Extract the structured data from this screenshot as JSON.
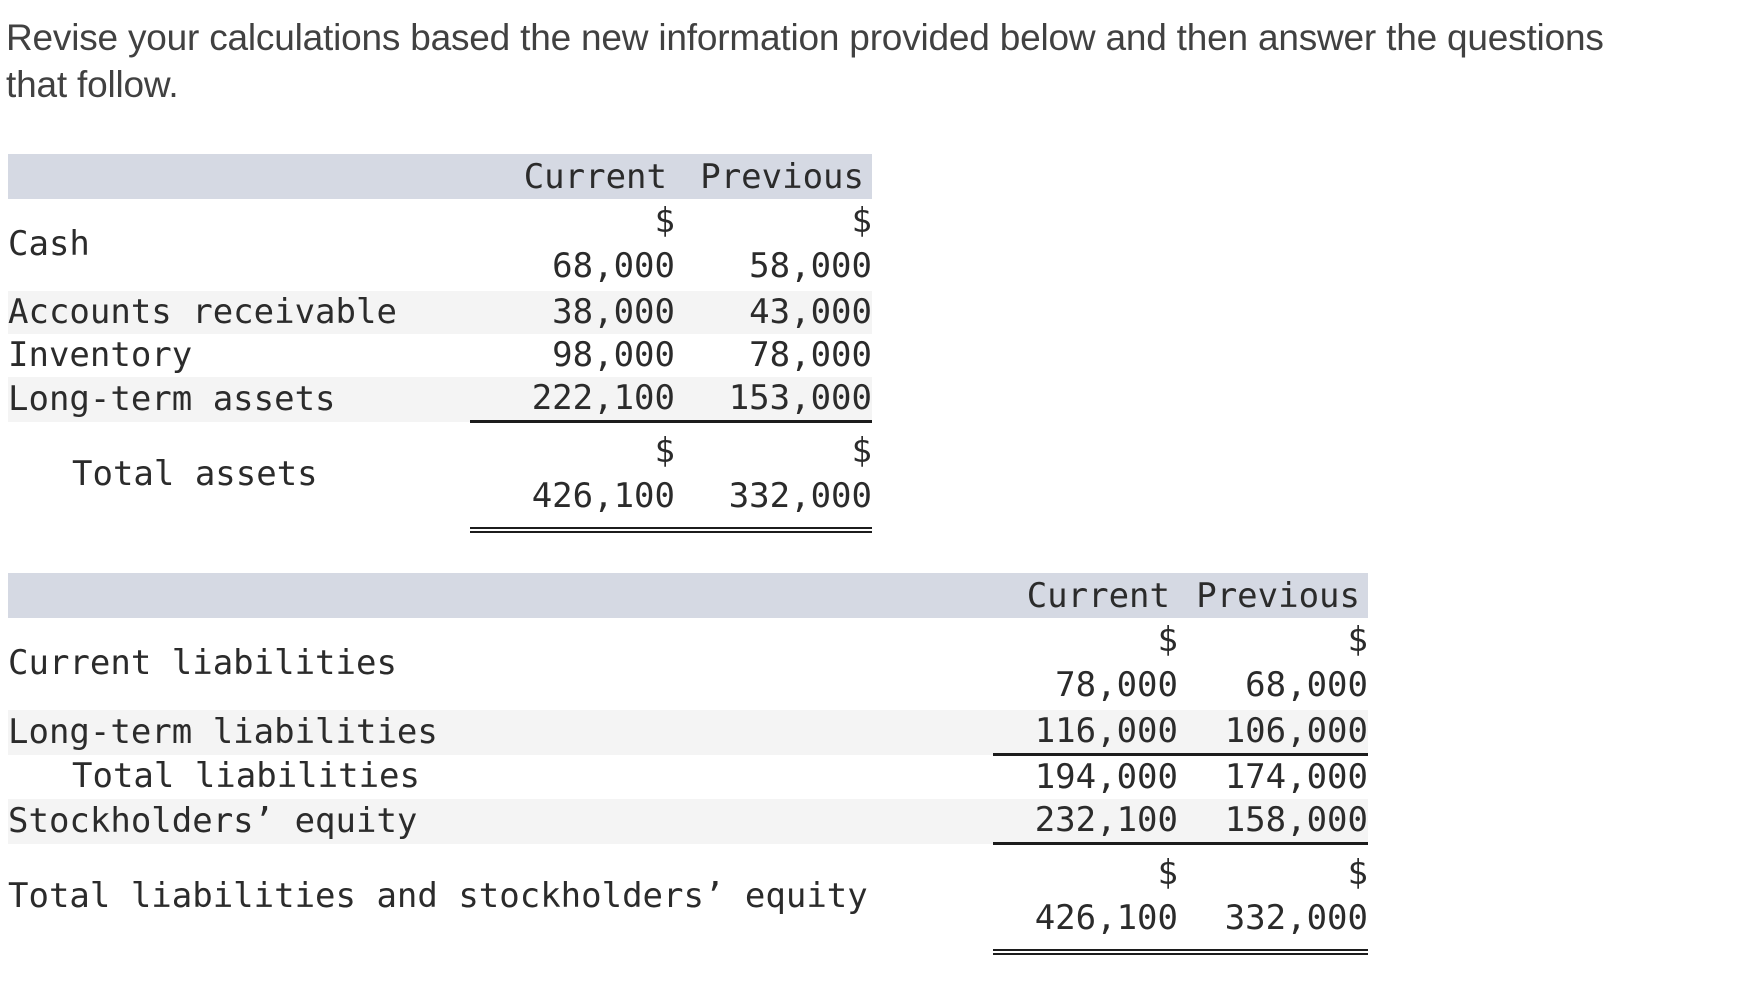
{
  "instruction": "Revise your calculations based the new information provided below and then answer the questions that follow.",
  "currency_symbol": "$",
  "assets_table": {
    "header": {
      "current": "Current",
      "previous": "Previous"
    },
    "rows": [
      {
        "label": "Cash",
        "current": "68,000",
        "previous": "58,000",
        "shows_dollar_sign": true
      },
      {
        "label": "Accounts receivable",
        "current": "38,000",
        "previous": "43,000",
        "shows_dollar_sign": false
      },
      {
        "label": "Inventory",
        "current": "98,000",
        "previous": "78,000",
        "shows_dollar_sign": false
      },
      {
        "label": "Long-term assets",
        "current": "222,100",
        "previous": "153,000",
        "shows_dollar_sign": false
      },
      {
        "label": "Total assets",
        "current": "426,100",
        "previous": "332,000",
        "shows_dollar_sign": true
      }
    ]
  },
  "liabilities_table": {
    "header": {
      "current": "Current",
      "previous": "Previous"
    },
    "rows": [
      {
        "label": "Current liabilities",
        "current": "78,000",
        "previous": "68,000",
        "shows_dollar_sign": true
      },
      {
        "label": "Long-term liabilities",
        "current": "116,000",
        "previous": "106,000",
        "shows_dollar_sign": false
      },
      {
        "label": "Total liabilities",
        "current": "194,000",
        "previous": "174,000",
        "shows_dollar_sign": false
      },
      {
        "label": "Stockholders’ equity",
        "current": "232,100",
        "previous": "158,000",
        "shows_dollar_sign": false
      },
      {
        "label": "Total liabilities and stockholders’ equity",
        "current": "426,100",
        "previous": "332,000",
        "shows_dollar_sign": true
      }
    ]
  },
  "colors": {
    "header_background": "#d5d9e3",
    "alt_row_background": "#f4f4f4",
    "rule_color": "#1c1c1c",
    "table_text": "#2b2b2b",
    "instruction_text": "#414141"
  }
}
